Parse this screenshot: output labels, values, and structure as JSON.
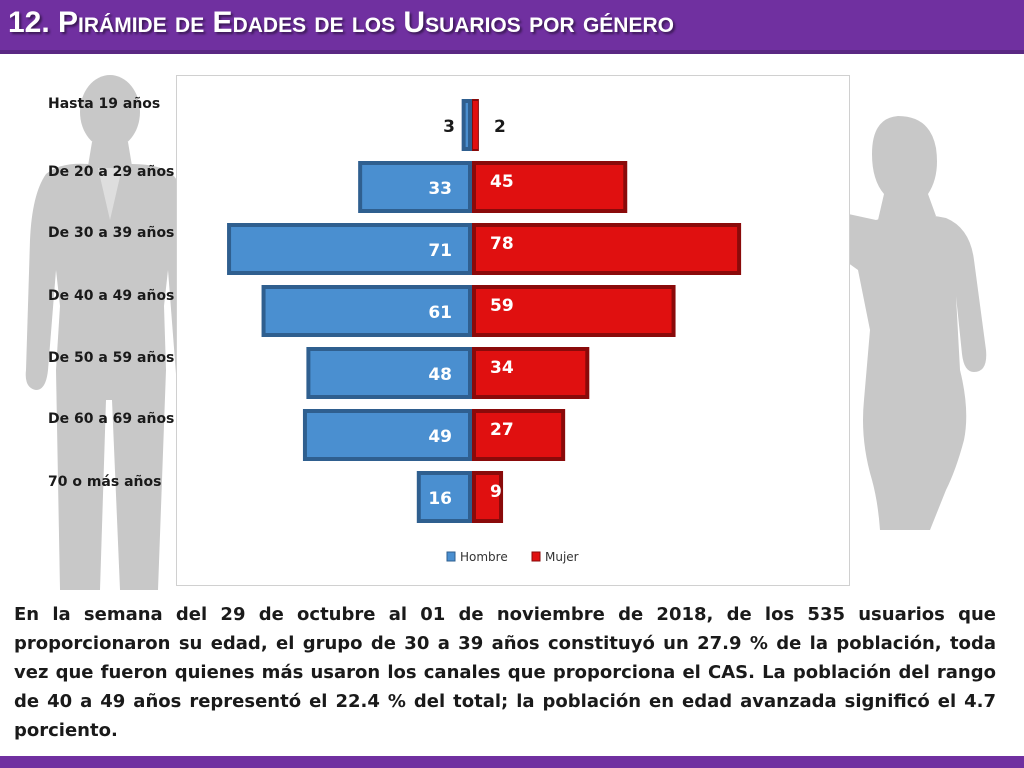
{
  "header": {
    "title": "12. Pirámide de Edades de los Usuarios por género"
  },
  "colors": {
    "header_bg": "#7030a0",
    "hombre": "#4a8fd0",
    "mujer": "#e01010"
  },
  "chart_data": {
    "type": "bar",
    "orientation": "horizontal-pyramid",
    "categories": [
      "Hasta 19 años",
      "De 20 a 29 años",
      "De 30 a 39 años",
      "De 40 a 49 años",
      "De 50 a 59 años",
      "De 60 a 69 años",
      "70 o más años"
    ],
    "series": [
      {
        "name": "Hombre",
        "values": [
          3,
          33,
          71,
          61,
          48,
          49,
          16
        ],
        "color": "#4a8fd0"
      },
      {
        "name": "Mujer",
        "values": [
          2,
          45,
          78,
          59,
          34,
          27,
          9
        ],
        "color": "#e01010"
      }
    ],
    "legend": "bottom",
    "grid": false,
    "data_labels": true
  },
  "paragraph": "En la semana del 29 de octubre al 01 de noviembre de 2018, de los 535 usuarios que proporcionaron su edad, el grupo de 30 a 39 años constituyó un 27.9 % de la población, toda vez que fueron quienes más usaron los canales que proporciona el CAS. La población del rango de 40 a 49 años representó el 22.4 % del total; la población en edad avanzada significó el 4.7 porciento.",
  "icons": {
    "left_figure": "man-silhouette-icon",
    "right_figure": "woman-silhouette-icon"
  }
}
